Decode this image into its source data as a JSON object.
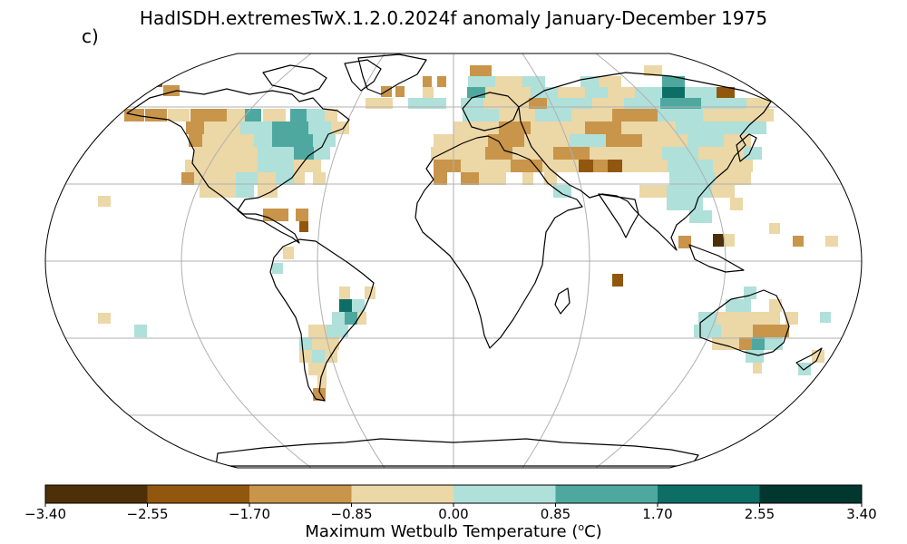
{
  "title": "HadISDH.extremesTwX.1.2.0.2024f anomaly January-December 1975",
  "panel_label": "c)",
  "colorbar": {
    "label_prefix": "Maximum Wetbulb Temperature (",
    "label_sup": "o",
    "label_suffix": "C)",
    "ticks": [
      "−3.40",
      "−2.55",
      "−1.70",
      "−0.85",
      "0.00",
      "0.85",
      "1.70",
      "2.55",
      "3.40"
    ],
    "colors": [
      "#4d2f08",
      "#92570f",
      "#c8954a",
      "#ecd7a6",
      "#afe0da",
      "#4ea89f",
      "#0d6e66",
      "#00372f"
    ]
  },
  "map": {
    "projection": "Robinson",
    "gridlines": true,
    "coastlines": true
  }
}
